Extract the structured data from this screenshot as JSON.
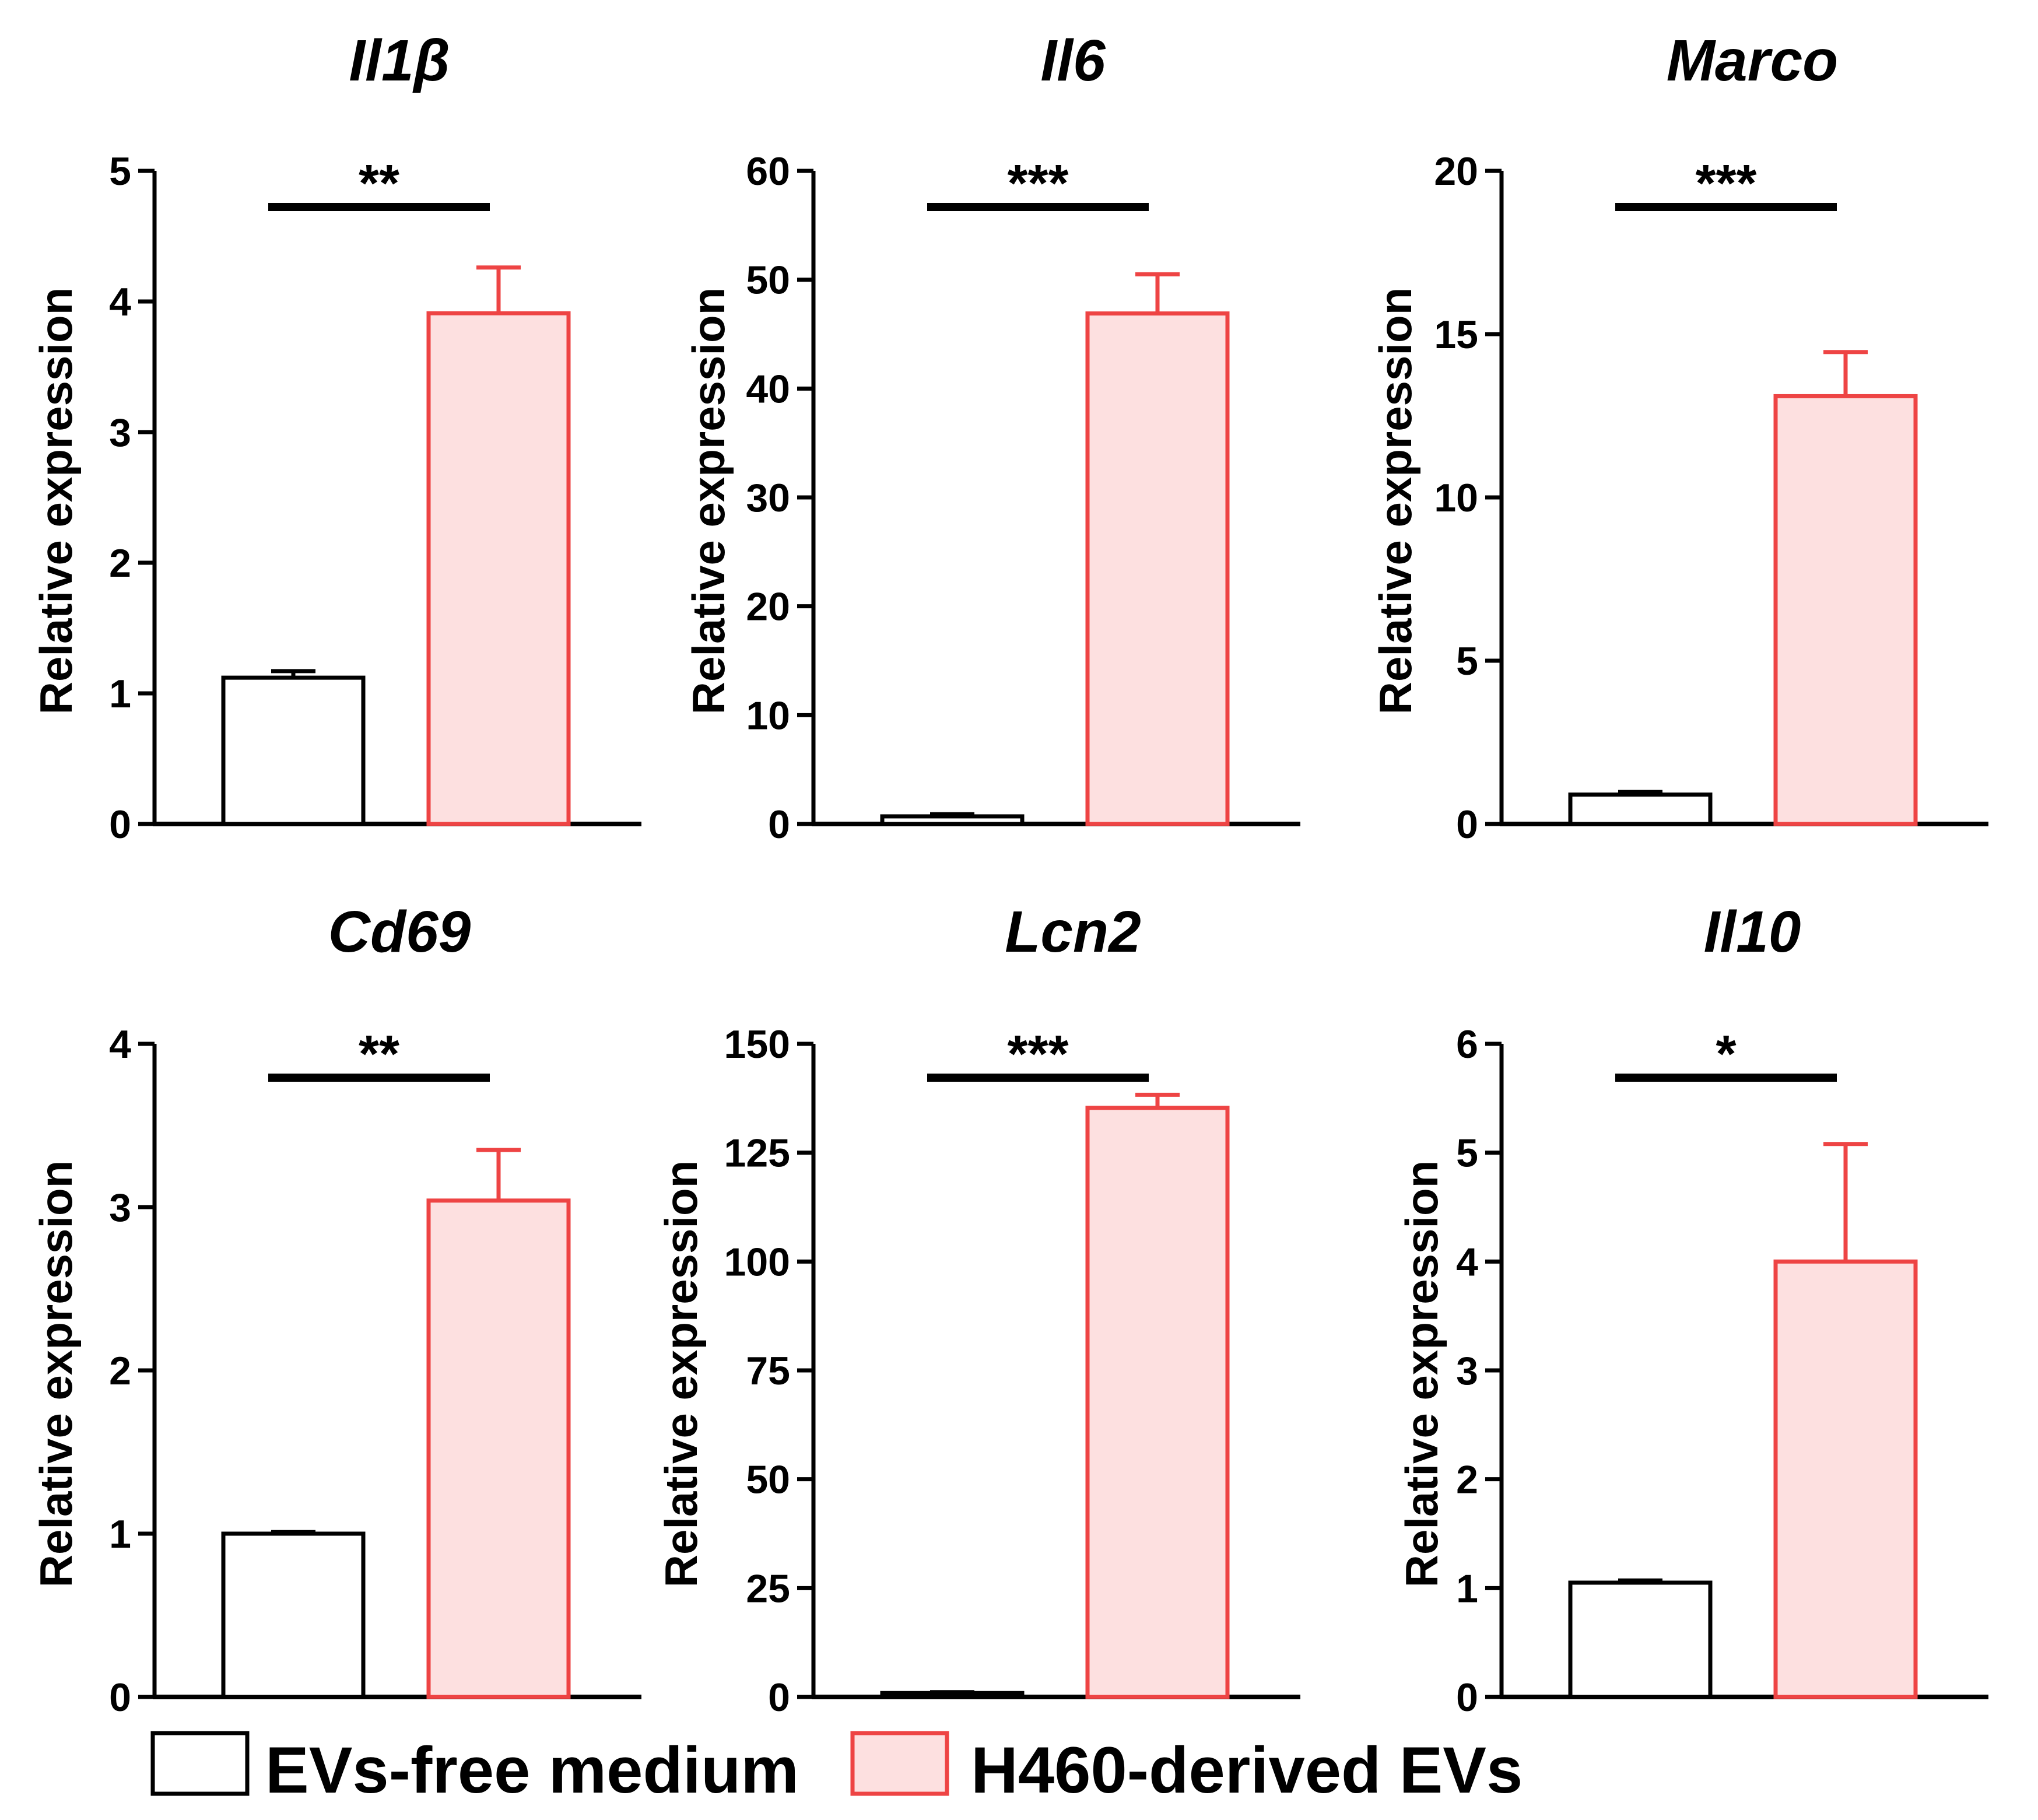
{
  "chart_data": [
    {
      "type": "bar",
      "title": "Il1β",
      "ylabel": "Relative expression",
      "ylim": [
        0,
        5
      ],
      "ticks": [
        "0",
        "1",
        "2",
        "3",
        "4",
        "5"
      ],
      "categories": [
        "EVs-free medium",
        "H460-derived EVs"
      ],
      "values": [
        1.12,
        3.91
      ],
      "errors": [
        0.05,
        0.35
      ],
      "significance": "**"
    },
    {
      "type": "bar",
      "title": "Il6",
      "ylabel": "Relative expression",
      "ylim": [
        0,
        60
      ],
      "ticks": [
        "0",
        "10",
        "20",
        "30",
        "40",
        "50",
        "60"
      ],
      "categories": [
        "EVs-free medium",
        "H460-derived EVs"
      ],
      "values": [
        0.7,
        46.9
      ],
      "errors": [
        0.2,
        3.6
      ],
      "significance": "***"
    },
    {
      "type": "bar",
      "title": "Marco",
      "ylabel": "Relative expression",
      "ylim": [
        0,
        20
      ],
      "ticks": [
        "0",
        "5",
        "10",
        "15",
        "20"
      ],
      "categories": [
        "EVs-free medium",
        "H460-derived EVs"
      ],
      "values": [
        0.9,
        13.1
      ],
      "errors": [
        0.08,
        1.35
      ],
      "significance": "***"
    },
    {
      "type": "bar",
      "title": "Cd69",
      "ylabel": "Relative expression",
      "ylim": [
        0,
        4
      ],
      "ticks": [
        "0",
        "1",
        "2",
        "3",
        "4"
      ],
      "categories": [
        "EVs-free medium",
        "H460-derived EVs"
      ],
      "values": [
        1.0,
        3.04
      ],
      "errors": [
        0.01,
        0.31
      ],
      "significance": "**"
    },
    {
      "type": "bar",
      "title": "Lcn2",
      "ylabel": "Relative expression",
      "ylim": [
        0,
        150
      ],
      "ticks": [
        "0",
        "25",
        "50",
        "75",
        "100",
        "125",
        "150"
      ],
      "categories": [
        "EVs-free medium",
        "H460-derived EVs"
      ],
      "values": [
        0.9,
        135.3
      ],
      "errors": [
        0.2,
        3.0
      ],
      "significance": "***"
    },
    {
      "type": "bar",
      "title": "Il10",
      "ylabel": "Relative expression",
      "ylim": [
        0,
        6
      ],
      "ticks": [
        "0",
        "1",
        "2",
        "3",
        "4",
        "5",
        "6"
      ],
      "categories": [
        "EVs-free medium",
        "H460-derived EVs"
      ],
      "values": [
        1.05,
        4.0
      ],
      "errors": [
        0.02,
        1.08
      ],
      "significance": "*"
    }
  ],
  "legend": [
    {
      "label": "EVs-free medium",
      "fill": "#ffffff",
      "stroke": "#000000"
    },
    {
      "label": "H460-derived EVs",
      "fill": "#fde0e0",
      "stroke": "#ee4444"
    }
  ]
}
